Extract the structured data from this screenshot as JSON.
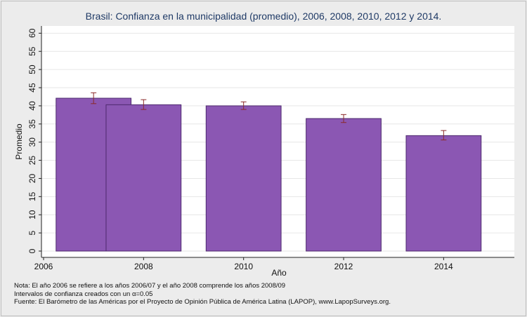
{
  "chart_data": {
    "type": "bar",
    "title": "Brasil: Confianza en la municipalidad (promedio), 2006, 2008, 2010, 2012 y 2014.",
    "xlabel": "Año",
    "ylabel": "Promedio",
    "ylim": [
      0,
      62
    ],
    "yticks": [
      0,
      5,
      10,
      15,
      20,
      25,
      30,
      35,
      40,
      45,
      50,
      55,
      60
    ],
    "xlim": [
      2006,
      2015.4
    ],
    "xticks": [
      2006,
      2008,
      2010,
      2012,
      2014
    ],
    "grid": true,
    "legend": "none",
    "bar_color": "#8b57b3",
    "bar_edge_color": "#4d2a6e",
    "errorbar_color": "#8b2a2a",
    "bars": [
      {
        "category": "2006",
        "x_start": 2006.25,
        "x_end": 2007.75,
        "value": 42.1,
        "ci_low": 40.6,
        "ci_high": 43.6
      },
      {
        "category": "2008",
        "x_start": 2007.25,
        "x_end": 2008.75,
        "value": 40.3,
        "ci_low": 39.0,
        "ci_high": 41.7
      },
      {
        "category": "2010",
        "x_start": 2009.25,
        "x_end": 2010.75,
        "value": 40.0,
        "ci_low": 39.0,
        "ci_high": 41.1
      },
      {
        "category": "2012",
        "x_start": 2011.25,
        "x_end": 2012.75,
        "value": 36.5,
        "ci_low": 35.4,
        "ci_high": 37.6
      },
      {
        "category": "2014",
        "x_start": 2013.25,
        "x_end": 2014.75,
        "value": 31.8,
        "ci_low": 30.6,
        "ci_high": 33.2
      }
    ]
  },
  "footnotes": {
    "line1": "Nota: El año 2006 se refiere a los años 2006/07 y el año 2008 comprende los años 2008/09",
    "line2": "Intervalos de confianza creados con un α=0.05",
    "line3": "Fuente: El Barómetro de las Américas por el Proyecto de Opinión Pública de América Latina (LAPOP), www.LapopSurveys.org."
  }
}
